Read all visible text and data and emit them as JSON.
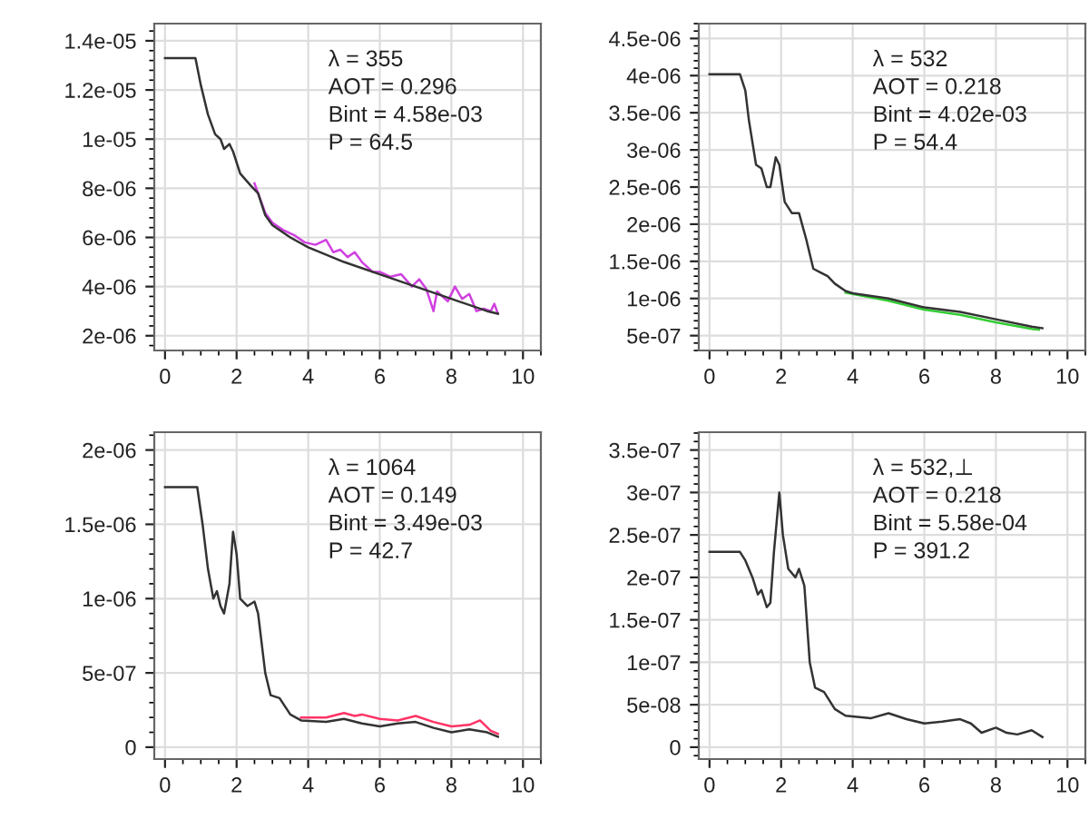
{
  "chart_data": [
    {
      "type": "line",
      "annotations": [
        "λ = 355",
        "AOT = 0.296",
        "Bint = 4.58e-03",
        "P = 64.5"
      ],
      "xlim": [
        -0.3,
        10.5
      ],
      "xticks": [
        0,
        2,
        4,
        6,
        8,
        10
      ],
      "ylim": [
        1.4e-06,
        1.47e-05
      ],
      "yticks": [
        {
          "value": 2e-06,
          "label": "2e-06"
        },
        {
          "value": 4e-06,
          "label": "4e-06"
        },
        {
          "value": 6e-06,
          "label": "6e-06"
        },
        {
          "value": 8e-06,
          "label": "8e-06"
        },
        {
          "value": 1e-05,
          "label": "1e-05"
        },
        {
          "value": 1.2e-05,
          "label": "1.2e-05"
        },
        {
          "value": 1.4e-05,
          "label": "1.4e-05"
        }
      ],
      "grid": true,
      "series": [
        {
          "color": "#d040e0",
          "x": [
            2.5,
            2.8,
            3.0,
            3.3,
            3.6,
            3.9,
            4.2,
            4.5,
            4.7,
            4.9,
            5.1,
            5.3,
            5.5,
            5.8,
            6.0,
            6.3,
            6.6,
            6.9,
            7.1,
            7.3,
            7.5,
            7.6,
            7.9,
            8.1,
            8.3,
            8.5,
            8.7,
            8.9,
            9.1,
            9.2,
            9.3
          ],
          "values": [
            8.2e-06,
            7e-06,
            6.6e-06,
            6.3e-06,
            6.1e-06,
            5.8e-06,
            5.7e-06,
            5.9e-06,
            5.4e-06,
            5.5e-06,
            5.2e-06,
            5.4e-06,
            5e-06,
            4.6e-06,
            4.6e-06,
            4.4e-06,
            4.5e-06,
            4e-06,
            4.3e-06,
            3.9e-06,
            3e-06,
            3.8e-06,
            3.4e-06,
            4e-06,
            3.5e-06,
            3.7e-06,
            3e-06,
            3.1e-06,
            3e-06,
            3.3e-06,
            2.9e-06
          ]
        },
        {
          "color": "#333333",
          "x": [
            0,
            0.85,
            1.0,
            1.2,
            1.4,
            1.55,
            1.65,
            1.8,
            1.9,
            2.1,
            2.4,
            2.6,
            2.8,
            3.0,
            3.5,
            4,
            5,
            6,
            7,
            8,
            9,
            9.3
          ],
          "values": [
            1.33e-05,
            1.33e-05,
            1.22e-05,
            1.1e-05,
            1.02e-05,
            1e-05,
            9.6e-06,
            9.8e-06,
            9.5e-06,
            8.6e-06,
            8.1e-06,
            7.8e-06,
            6.9e-06,
            6.5e-06,
            6e-06,
            5.6e-06,
            5e-06,
            4.5e-06,
            4e-06,
            3.5e-06,
            3e-06,
            2.9e-06
          ]
        }
      ]
    },
    {
      "type": "line",
      "annotations": [
        "λ = 532",
        "AOT = 0.218",
        "Bint = 4.02e-03",
        "P = 54.4"
      ],
      "xlim": [
        -0.3,
        10.5
      ],
      "xticks": [
        0,
        2,
        4,
        6,
        8,
        10
      ],
      "ylim": [
        3e-07,
        4.7e-06
      ],
      "yticks": [
        {
          "value": 5e-07,
          "label": "5e-07"
        },
        {
          "value": 1e-06,
          "label": "1e-06"
        },
        {
          "value": 1.5e-06,
          "label": "1.5e-06"
        },
        {
          "value": 2e-06,
          "label": "2e-06"
        },
        {
          "value": 2.5e-06,
          "label": "2.5e-06"
        },
        {
          "value": 3e-06,
          "label": "3e-06"
        },
        {
          "value": 3.5e-06,
          "label": "3.5e-06"
        },
        {
          "value": 4e-06,
          "label": "4e-06"
        },
        {
          "value": 4.5e-06,
          "label": "4.5e-06"
        }
      ],
      "grid": true,
      "series": [
        {
          "color": "#33cc33",
          "x": [
            3.8,
            5,
            6,
            7,
            8,
            9,
            9.2
          ],
          "values": [
            1.08e-06,
            9.7e-07,
            8.5e-07,
            7.8e-07,
            6.8e-07,
            5.9e-07,
            5.8e-07
          ]
        },
        {
          "color": "#333333",
          "x": [
            0,
            0.85,
            1.0,
            1.1,
            1.3,
            1.45,
            1.6,
            1.7,
            1.85,
            1.95,
            2.1,
            2.3,
            2.5,
            2.7,
            2.9,
            3.1,
            3.3,
            3.5,
            3.8,
            4,
            5,
            6,
            7,
            8,
            9,
            9.3
          ],
          "values": [
            4.02e-06,
            4.02e-06,
            3.8e-06,
            3.4e-06,
            2.8e-06,
            2.75e-06,
            2.5e-06,
            2.5e-06,
            2.9e-06,
            2.8e-06,
            2.3e-06,
            2.15e-06,
            2.15e-06,
            1.8e-06,
            1.4e-06,
            1.35e-06,
            1.3e-06,
            1.2e-06,
            1.1e-06,
            1.07e-06,
            1e-06,
            8.8e-07,
            8.2e-07,
            7.2e-07,
            6.2e-07,
            6e-07
          ]
        }
      ]
    },
    {
      "type": "line",
      "annotations": [
        "λ = 1064",
        "AOT = 0.149",
        "Bint = 3.49e-03",
        "P = 42.7"
      ],
      "xlim": [
        -0.3,
        10.5
      ],
      "xticks": [
        0,
        2,
        4,
        6,
        8,
        10
      ],
      "ylim": [
        -8e-08,
        2.12e-06
      ],
      "yticks": [
        0,
        {
          "value": 5e-07,
          "label": "5e-07"
        },
        {
          "value": 1e-06,
          "label": "1e-06"
        },
        {
          "value": 1.5e-06,
          "label": "1.5e-06"
        },
        {
          "value": 2e-06,
          "label": "2e-06"
        }
      ],
      "grid": true,
      "series": [
        {
          "color": "#ff3366",
          "x": [
            3.8,
            4.5,
            5,
            5.3,
            5.5,
            6,
            6.5,
            7,
            7.5,
            8,
            8.5,
            8.8,
            9.1,
            9.3
          ],
          "values": [
            2e-07,
            2e-07,
            2.3e-07,
            2.1e-07,
            2.2e-07,
            1.9e-07,
            1.8e-07,
            2.1e-07,
            1.7e-07,
            1.4e-07,
            1.5e-07,
            1.8e-07,
            1.1e-07,
            9e-08
          ]
        },
        {
          "color": "#333333",
          "x": [
            0,
            0.9,
            1.05,
            1.2,
            1.35,
            1.45,
            1.55,
            1.65,
            1.8,
            1.9,
            2.0,
            2.1,
            2.3,
            2.5,
            2.6,
            2.8,
            2.95,
            3.2,
            3.5,
            3.8,
            4.5,
            5,
            5.5,
            6,
            6.5,
            7,
            7.5,
            8,
            8.5,
            9,
            9.3
          ],
          "values": [
            1.75e-06,
            1.75e-06,
            1.5e-06,
            1.2e-06,
            1e-06,
            1.05e-06,
            9.5e-07,
            9e-07,
            1.1e-06,
            1.45e-06,
            1.3e-06,
            1e-06,
            9.5e-07,
            9.8e-07,
            9e-07,
            5e-07,
            3.5e-07,
            3.3e-07,
            2.2e-07,
            1.8e-07,
            1.7e-07,
            1.9e-07,
            1.6e-07,
            1.4e-07,
            1.6e-07,
            1.7e-07,
            1.3e-07,
            1e-07,
            1.2e-07,
            1e-07,
            7e-08
          ]
        }
      ]
    },
    {
      "type": "line",
      "annotations": [
        "λ = 532,⊥",
        "AOT = 0.218",
        "Bint = 5.58e-04",
        "P = 391.2"
      ],
      "xlim": [
        -0.3,
        10.5
      ],
      "xticks": [
        0,
        2,
        4,
        6,
        8,
        10
      ],
      "ylim": [
        -1.4e-08,
        3.71e-07
      ],
      "yticks": [
        0,
        {
          "value": 5e-08,
          "label": "5e-08"
        },
        {
          "value": 1e-07,
          "label": "1e-07"
        },
        {
          "value": 1.5e-07,
          "label": "1.5e-07"
        },
        {
          "value": 2e-07,
          "label": "2e-07"
        },
        {
          "value": 2.5e-07,
          "label": "2.5e-07"
        },
        {
          "value": 3e-07,
          "label": "3e-07"
        },
        {
          "value": 3.5e-07,
          "label": "3.5e-07"
        }
      ],
      "grid": true,
      "series": [
        {
          "color": "#333333",
          "x": [
            0,
            0.85,
            1.0,
            1.2,
            1.35,
            1.45,
            1.6,
            1.7,
            1.8,
            1.95,
            2.05,
            2.2,
            2.4,
            2.5,
            2.65,
            2.8,
            2.95,
            3.2,
            3.5,
            3.8,
            4.5,
            5,
            5.5,
            6,
            6.5,
            7,
            7.3,
            7.6,
            8,
            8.3,
            8.6,
            9,
            9.3
          ],
          "values": [
            2.3e-07,
            2.3e-07,
            2.2e-07,
            2e-07,
            1.8e-07,
            1.85e-07,
            1.65e-07,
            1.7e-07,
            2.3e-07,
            3e-07,
            2.5e-07,
            2.1e-07,
            2e-07,
            2.1e-07,
            1.9e-07,
            1e-07,
            7e-08,
            6.5e-08,
            4.5e-08,
            3.7e-08,
            3.4e-08,
            4e-08,
            3.3e-08,
            2.8e-08,
            3e-08,
            3.3e-08,
            2.8e-08,
            1.7e-08,
            2.3e-08,
            1.7e-08,
            1.5e-08,
            2e-08,
            1.2e-08
          ]
        }
      ]
    }
  ]
}
